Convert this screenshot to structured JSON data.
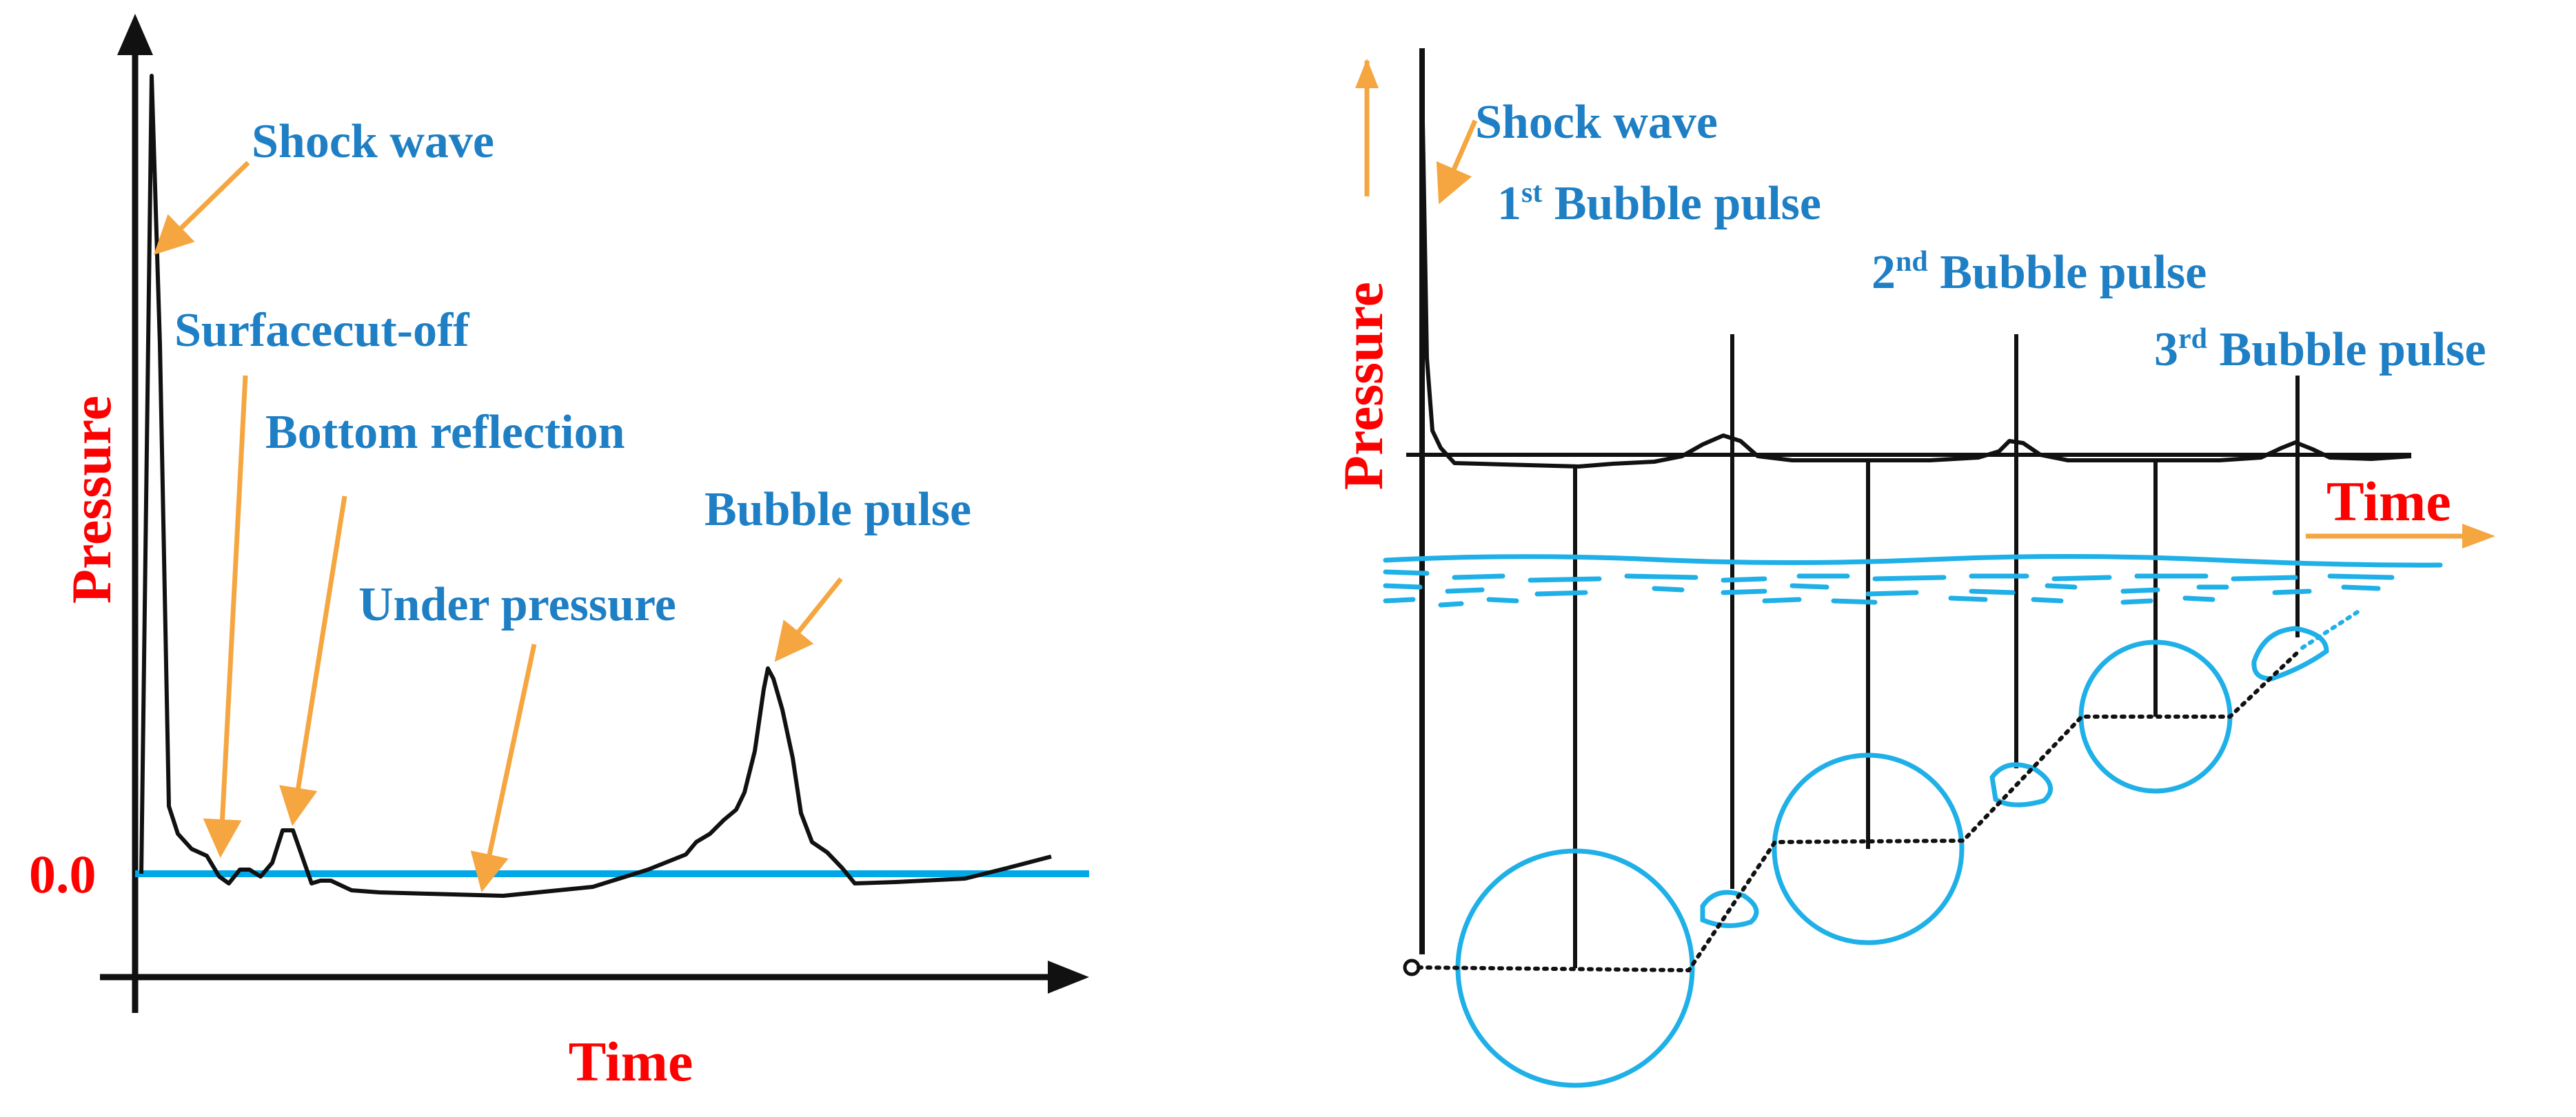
{
  "left_panel": {
    "y_axis_label": "Pressure",
    "x_axis_label": "Time",
    "zero_label": "0.0",
    "annotations": {
      "shock_wave": "Shock wave",
      "surface_cutoff": "Surfacecut-off",
      "bottom_reflection": "Bottom reflection",
      "under_pressure": "Under pressure",
      "bubble_pulse": "Bubble pulse"
    }
  },
  "right_panel": {
    "y_axis_label": "Pressure",
    "x_axis_label": "Time",
    "annotations": {
      "shock_wave": "Shock wave",
      "bubble_1_num": "1",
      "bubble_1_sup": "st",
      "bubble_1_text": " Bubble pulse",
      "bubble_2_num": "2",
      "bubble_2_sup": "nd",
      "bubble_2_text": " Bubble pulse",
      "bubble_3_num": "3",
      "bubble_3_sup": "rd",
      "bubble_3_text": " Bubble pulse"
    }
  },
  "colors": {
    "curve": "#111111",
    "zero_line": "#00a8e8",
    "arrow": "#f5a640",
    "label_blue": "#1f7fc4",
    "label_red": "#ff0000"
  }
}
